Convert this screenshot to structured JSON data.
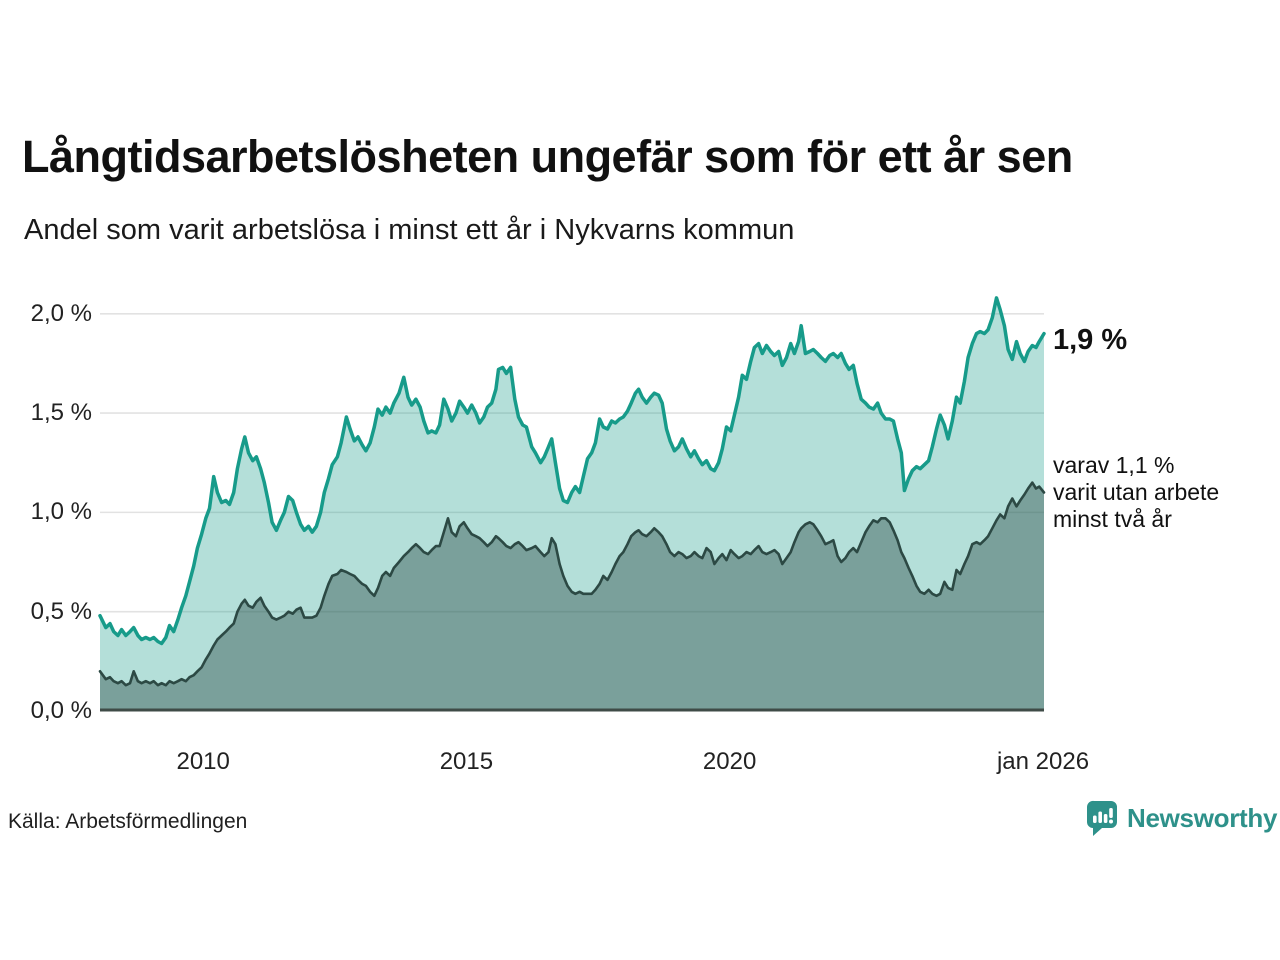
{
  "header": {
    "title": "Långtidsarbetslösheten ungefär som för ett år sen",
    "subtitle": "Andel som varit arbetslösa i minst ett år i Nykvarns kommun"
  },
  "annotations": {
    "total_label": "1,9 %",
    "two_year_lines": [
      "varav 1,1 %",
      "varit utan arbete",
      "minst två år"
    ]
  },
  "footer": {
    "source": "Källa: Arbetsförmedlingen",
    "brand": "Newsworthy"
  },
  "colors": {
    "teal_line": "#179b8a",
    "teal_fill": "rgba(23,155,138,0.32)",
    "dark_line": "#2c4944",
    "dark_fill": "rgba(44,73,68,0.42)",
    "brand_teal": "#2e918a",
    "gridline": "#e2e2e2",
    "axis": "#3f4b47"
  },
  "chart_data": {
    "type": "area",
    "title": "Långtidsarbetslösheten ungefär som för ett år sen",
    "subtitle": "Andel som varit arbetslösa i minst ett år i Nykvarns kommun",
    "xlabel": "",
    "ylabel": "",
    "grid": true,
    "legend": "none",
    "x_domain": [
      2008.04,
      2026.0
    ],
    "ylim": [
      0,
      2.17
    ],
    "y_ticks": [
      {
        "label": "0,0 %",
        "value": 0
      },
      {
        "label": "0,5 %",
        "value": 0.5
      },
      {
        "label": "1,0 %",
        "value": 1.0
      },
      {
        "label": "1,5 %",
        "value": 1.5
      },
      {
        "label": "2,0 %",
        "value": 2.0
      }
    ],
    "x_ticks": [
      {
        "label": "2010",
        "year": 2010
      },
      {
        "label": "2015",
        "year": 2015
      },
      {
        "label": "2020",
        "year": 2020
      },
      {
        "label": "jan 2026",
        "year": 2026
      }
    ],
    "series_names": [
      "Arbetslösa minst ett år",
      "Varit utan arbete minst två år"
    ],
    "end_values": {
      "minst_ett_ar": "1,9 %",
      "minst_tva_ar": "1,1 %"
    },
    "points": [
      [
        2008.04,
        0.48,
        0.2
      ],
      [
        2008.15,
        0.42,
        0.16
      ],
      [
        2008.23,
        0.44,
        0.17
      ],
      [
        2008.3,
        0.4,
        0.15
      ],
      [
        2008.38,
        0.38,
        0.14
      ],
      [
        2008.45,
        0.41,
        0.15
      ],
      [
        2008.53,
        0.38,
        0.13
      ],
      [
        2008.61,
        0.4,
        0.14
      ],
      [
        2008.68,
        0.42,
        0.2
      ],
      [
        2008.76,
        0.38,
        0.15
      ],
      [
        2008.83,
        0.36,
        0.14
      ],
      [
        2008.91,
        0.37,
        0.15
      ],
      [
        2008.99,
        0.36,
        0.14
      ],
      [
        2009.06,
        0.37,
        0.15
      ],
      [
        2009.14,
        0.35,
        0.13
      ],
      [
        2009.21,
        0.34,
        0.14
      ],
      [
        2009.29,
        0.37,
        0.13
      ],
      [
        2009.36,
        0.43,
        0.15
      ],
      [
        2009.44,
        0.4,
        0.14
      ],
      [
        2009.52,
        0.46,
        0.15
      ],
      [
        2009.59,
        0.52,
        0.16
      ],
      [
        2009.67,
        0.58,
        0.15
      ],
      [
        2009.74,
        0.65,
        0.17
      ],
      [
        2009.82,
        0.73,
        0.18
      ],
      [
        2009.89,
        0.82,
        0.2
      ],
      [
        2009.97,
        0.89,
        0.22
      ],
      [
        2010.05,
        0.97,
        0.26
      ],
      [
        2010.12,
        1.02,
        0.29
      ],
      [
        2010.2,
        1.18,
        0.33
      ],
      [
        2010.27,
        1.1,
        0.36
      ],
      [
        2010.35,
        1.05,
        0.38
      ],
      [
        2010.43,
        1.06,
        0.4
      ],
      [
        2010.5,
        1.04,
        0.42
      ],
      [
        2010.58,
        1.1,
        0.44
      ],
      [
        2010.65,
        1.22,
        0.5
      ],
      [
        2010.73,
        1.32,
        0.54
      ],
      [
        2010.79,
        1.38,
        0.56
      ],
      [
        2010.86,
        1.3,
        0.53
      ],
      [
        2010.94,
        1.26,
        0.52
      ],
      [
        2011.01,
        1.28,
        0.55
      ],
      [
        2011.09,
        1.22,
        0.57
      ],
      [
        2011.16,
        1.15,
        0.53
      ],
      [
        2011.24,
        1.05,
        0.5
      ],
      [
        2011.31,
        0.95,
        0.47
      ],
      [
        2011.39,
        0.91,
        0.46
      ],
      [
        2011.47,
        0.96,
        0.47
      ],
      [
        2011.54,
        1.0,
        0.48
      ],
      [
        2011.62,
        1.08,
        0.5
      ],
      [
        2011.7,
        1.06,
        0.49
      ],
      [
        2011.77,
        1.0,
        0.51
      ],
      [
        2011.85,
        0.94,
        0.52
      ],
      [
        2011.92,
        0.91,
        0.47
      ],
      [
        2012.0,
        0.93,
        0.47
      ],
      [
        2012.07,
        0.9,
        0.47
      ],
      [
        2012.15,
        0.93,
        0.48
      ],
      [
        2012.23,
        1.0,
        0.52
      ],
      [
        2012.3,
        1.1,
        0.58
      ],
      [
        2012.38,
        1.17,
        0.64
      ],
      [
        2012.45,
        1.24,
        0.68
      ],
      [
        2012.55,
        1.28,
        0.69
      ],
      [
        2012.62,
        1.35,
        0.71
      ],
      [
        2012.72,
        1.48,
        0.7
      ],
      [
        2012.79,
        1.42,
        0.69
      ],
      [
        2012.87,
        1.36,
        0.68
      ],
      [
        2012.94,
        1.38,
        0.66
      ],
      [
        2013.02,
        1.34,
        0.64
      ],
      [
        2013.09,
        1.31,
        0.63
      ],
      [
        2013.17,
        1.35,
        0.6
      ],
      [
        2013.25,
        1.43,
        0.58
      ],
      [
        2013.32,
        1.52,
        0.62
      ],
      [
        2013.4,
        1.49,
        0.68
      ],
      [
        2013.47,
        1.53,
        0.7
      ],
      [
        2013.55,
        1.5,
        0.68
      ],
      [
        2013.62,
        1.55,
        0.72
      ],
      [
        2013.72,
        1.6,
        0.75
      ],
      [
        2013.81,
        1.68,
        0.78
      ],
      [
        2013.89,
        1.58,
        0.8
      ],
      [
        2013.96,
        1.54,
        0.82
      ],
      [
        2014.04,
        1.57,
        0.84
      ],
      [
        2014.12,
        1.53,
        0.82
      ],
      [
        2014.19,
        1.46,
        0.8
      ],
      [
        2014.27,
        1.4,
        0.79
      ],
      [
        2014.34,
        1.41,
        0.81
      ],
      [
        2014.42,
        1.4,
        0.83
      ],
      [
        2014.49,
        1.44,
        0.83
      ],
      [
        2014.57,
        1.57,
        0.9
      ],
      [
        2014.65,
        1.52,
        0.97
      ],
      [
        2014.72,
        1.46,
        0.9
      ],
      [
        2014.8,
        1.5,
        0.88
      ],
      [
        2014.87,
        1.56,
        0.93
      ],
      [
        2014.95,
        1.53,
        0.95
      ],
      [
        2015.02,
        1.5,
        0.92
      ],
      [
        2015.1,
        1.54,
        0.89
      ],
      [
        2015.18,
        1.5,
        0.88
      ],
      [
        2015.25,
        1.45,
        0.87
      ],
      [
        2015.33,
        1.48,
        0.85
      ],
      [
        2015.4,
        1.53,
        0.83
      ],
      [
        2015.48,
        1.55,
        0.85
      ],
      [
        2015.56,
        1.62,
        0.88
      ],
      [
        2015.61,
        1.72,
        0.87
      ],
      [
        2015.69,
        1.73,
        0.85
      ],
      [
        2015.76,
        1.7,
        0.83
      ],
      [
        2015.84,
        1.73,
        0.82
      ],
      [
        2015.92,
        1.57,
        0.84
      ],
      [
        2015.99,
        1.48,
        0.85
      ],
      [
        2016.07,
        1.44,
        0.83
      ],
      [
        2016.14,
        1.43,
        0.81
      ],
      [
        2016.24,
        1.33,
        0.82
      ],
      [
        2016.31,
        1.3,
        0.83
      ],
      [
        2016.41,
        1.25,
        0.8
      ],
      [
        2016.48,
        1.28,
        0.78
      ],
      [
        2016.56,
        1.33,
        0.8
      ],
      [
        2016.62,
        1.37,
        0.87
      ],
      [
        2016.69,
        1.25,
        0.84
      ],
      [
        2016.77,
        1.12,
        0.74
      ],
      [
        2016.84,
        1.06,
        0.68
      ],
      [
        2016.92,
        1.05,
        0.63
      ],
      [
        2017.0,
        1.1,
        0.6
      ],
      [
        2017.07,
        1.13,
        0.59
      ],
      [
        2017.15,
        1.1,
        0.6
      ],
      [
        2017.22,
        1.18,
        0.59
      ],
      [
        2017.3,
        1.27,
        0.59
      ],
      [
        2017.38,
        1.3,
        0.59
      ],
      [
        2017.45,
        1.35,
        0.61
      ],
      [
        2017.53,
        1.47,
        0.64
      ],
      [
        2017.6,
        1.43,
        0.68
      ],
      [
        2017.68,
        1.42,
        0.66
      ],
      [
        2017.76,
        1.46,
        0.7
      ],
      [
        2017.83,
        1.45,
        0.74
      ],
      [
        2017.91,
        1.47,
        0.78
      ],
      [
        2017.98,
        1.48,
        0.8
      ],
      [
        2018.06,
        1.51,
        0.84
      ],
      [
        2018.13,
        1.55,
        0.88
      ],
      [
        2018.21,
        1.6,
        0.9
      ],
      [
        2018.27,
        1.62,
        0.91
      ],
      [
        2018.34,
        1.58,
        0.89
      ],
      [
        2018.42,
        1.55,
        0.88
      ],
      [
        2018.5,
        1.58,
        0.9
      ],
      [
        2018.57,
        1.6,
        0.92
      ],
      [
        2018.65,
        1.59,
        0.9
      ],
      [
        2018.72,
        1.55,
        0.88
      ],
      [
        2018.8,
        1.42,
        0.84
      ],
      [
        2018.87,
        1.36,
        0.8
      ],
      [
        2018.95,
        1.31,
        0.78
      ],
      [
        2019.03,
        1.33,
        0.8
      ],
      [
        2019.1,
        1.37,
        0.79
      ],
      [
        2019.18,
        1.32,
        0.77
      ],
      [
        2019.26,
        1.28,
        0.78
      ],
      [
        2019.33,
        1.31,
        0.8
      ],
      [
        2019.41,
        1.27,
        0.78
      ],
      [
        2019.48,
        1.24,
        0.77
      ],
      [
        2019.56,
        1.26,
        0.82
      ],
      [
        2019.64,
        1.22,
        0.8
      ],
      [
        2019.71,
        1.21,
        0.74
      ],
      [
        2019.79,
        1.25,
        0.77
      ],
      [
        2019.86,
        1.32,
        0.79
      ],
      [
        2019.94,
        1.43,
        0.76
      ],
      [
        2020.02,
        1.41,
        0.81
      ],
      [
        2020.09,
        1.49,
        0.79
      ],
      [
        2020.17,
        1.58,
        0.77
      ],
      [
        2020.24,
        1.69,
        0.78
      ],
      [
        2020.32,
        1.67,
        0.8
      ],
      [
        2020.4,
        1.76,
        0.79
      ],
      [
        2020.47,
        1.83,
        0.81
      ],
      [
        2020.55,
        1.85,
        0.83
      ],
      [
        2020.62,
        1.8,
        0.8
      ],
      [
        2020.7,
        1.84,
        0.79
      ],
      [
        2020.78,
        1.81,
        0.8
      ],
      [
        2020.85,
        1.79,
        0.81
      ],
      [
        2020.93,
        1.81,
        0.79
      ],
      [
        2021.0,
        1.74,
        0.74
      ],
      [
        2021.08,
        1.78,
        0.77
      ],
      [
        2021.16,
        1.85,
        0.8
      ],
      [
        2021.23,
        1.8,
        0.85
      ],
      [
        2021.31,
        1.86,
        0.9
      ],
      [
        2021.36,
        1.94,
        0.92
      ],
      [
        2021.44,
        1.8,
        0.94
      ],
      [
        2021.52,
        1.81,
        0.95
      ],
      [
        2021.59,
        1.82,
        0.94
      ],
      [
        2021.67,
        1.8,
        0.91
      ],
      [
        2021.74,
        1.78,
        0.88
      ],
      [
        2021.82,
        1.76,
        0.84
      ],
      [
        2021.9,
        1.79,
        0.85
      ],
      [
        2021.97,
        1.8,
        0.86
      ],
      [
        2022.05,
        1.78,
        0.78
      ],
      [
        2022.12,
        1.8,
        0.75
      ],
      [
        2022.2,
        1.75,
        0.77
      ],
      [
        2022.27,
        1.72,
        0.8
      ],
      [
        2022.35,
        1.74,
        0.82
      ],
      [
        2022.42,
        1.65,
        0.8
      ],
      [
        2022.5,
        1.57,
        0.85
      ],
      [
        2022.58,
        1.55,
        0.9
      ],
      [
        2022.65,
        1.53,
        0.93
      ],
      [
        2022.73,
        1.52,
        0.96
      ],
      [
        2022.81,
        1.55,
        0.95
      ],
      [
        2022.88,
        1.5,
        0.97
      ],
      [
        2022.96,
        1.47,
        0.97
      ],
      [
        2023.04,
        1.47,
        0.95
      ],
      [
        2023.11,
        1.46,
        0.91
      ],
      [
        2023.19,
        1.37,
        0.86
      ],
      [
        2023.26,
        1.3,
        0.8
      ],
      [
        2023.32,
        1.11,
        0.77
      ],
      [
        2023.4,
        1.17,
        0.72
      ],
      [
        2023.47,
        1.21,
        0.68
      ],
      [
        2023.55,
        1.23,
        0.63
      ],
      [
        2023.62,
        1.22,
        0.6
      ],
      [
        2023.7,
        1.24,
        0.59
      ],
      [
        2023.78,
        1.26,
        0.61
      ],
      [
        2023.85,
        1.33,
        0.59
      ],
      [
        2023.93,
        1.42,
        0.58
      ],
      [
        2024.0,
        1.49,
        0.59
      ],
      [
        2024.08,
        1.44,
        0.65
      ],
      [
        2024.15,
        1.37,
        0.62
      ],
      [
        2024.23,
        1.46,
        0.61
      ],
      [
        2024.31,
        1.58,
        0.71
      ],
      [
        2024.38,
        1.55,
        0.69
      ],
      [
        2024.46,
        1.66,
        0.74
      ],
      [
        2024.53,
        1.78,
        0.78
      ],
      [
        2024.61,
        1.85,
        0.84
      ],
      [
        2024.69,
        1.9,
        0.85
      ],
      [
        2024.76,
        1.91,
        0.84
      ],
      [
        2024.84,
        1.9,
        0.86
      ],
      [
        2024.91,
        1.92,
        0.88
      ],
      [
        2024.99,
        1.98,
        0.92
      ],
      [
        2025.07,
        2.08,
        0.96
      ],
      [
        2025.14,
        2.02,
        0.99
      ],
      [
        2025.22,
        1.94,
        0.97
      ],
      [
        2025.29,
        1.82,
        1.03
      ],
      [
        2025.37,
        1.77,
        1.07
      ],
      [
        2025.45,
        1.86,
        1.03
      ],
      [
        2025.52,
        1.8,
        1.06
      ],
      [
        2025.6,
        1.76,
        1.09
      ],
      [
        2025.67,
        1.81,
        1.12
      ],
      [
        2025.75,
        1.84,
        1.15
      ],
      [
        2025.82,
        1.83,
        1.12
      ],
      [
        2025.88,
        1.86,
        1.13
      ],
      [
        2026.0,
        1.9,
        1.1
      ]
    ]
  }
}
